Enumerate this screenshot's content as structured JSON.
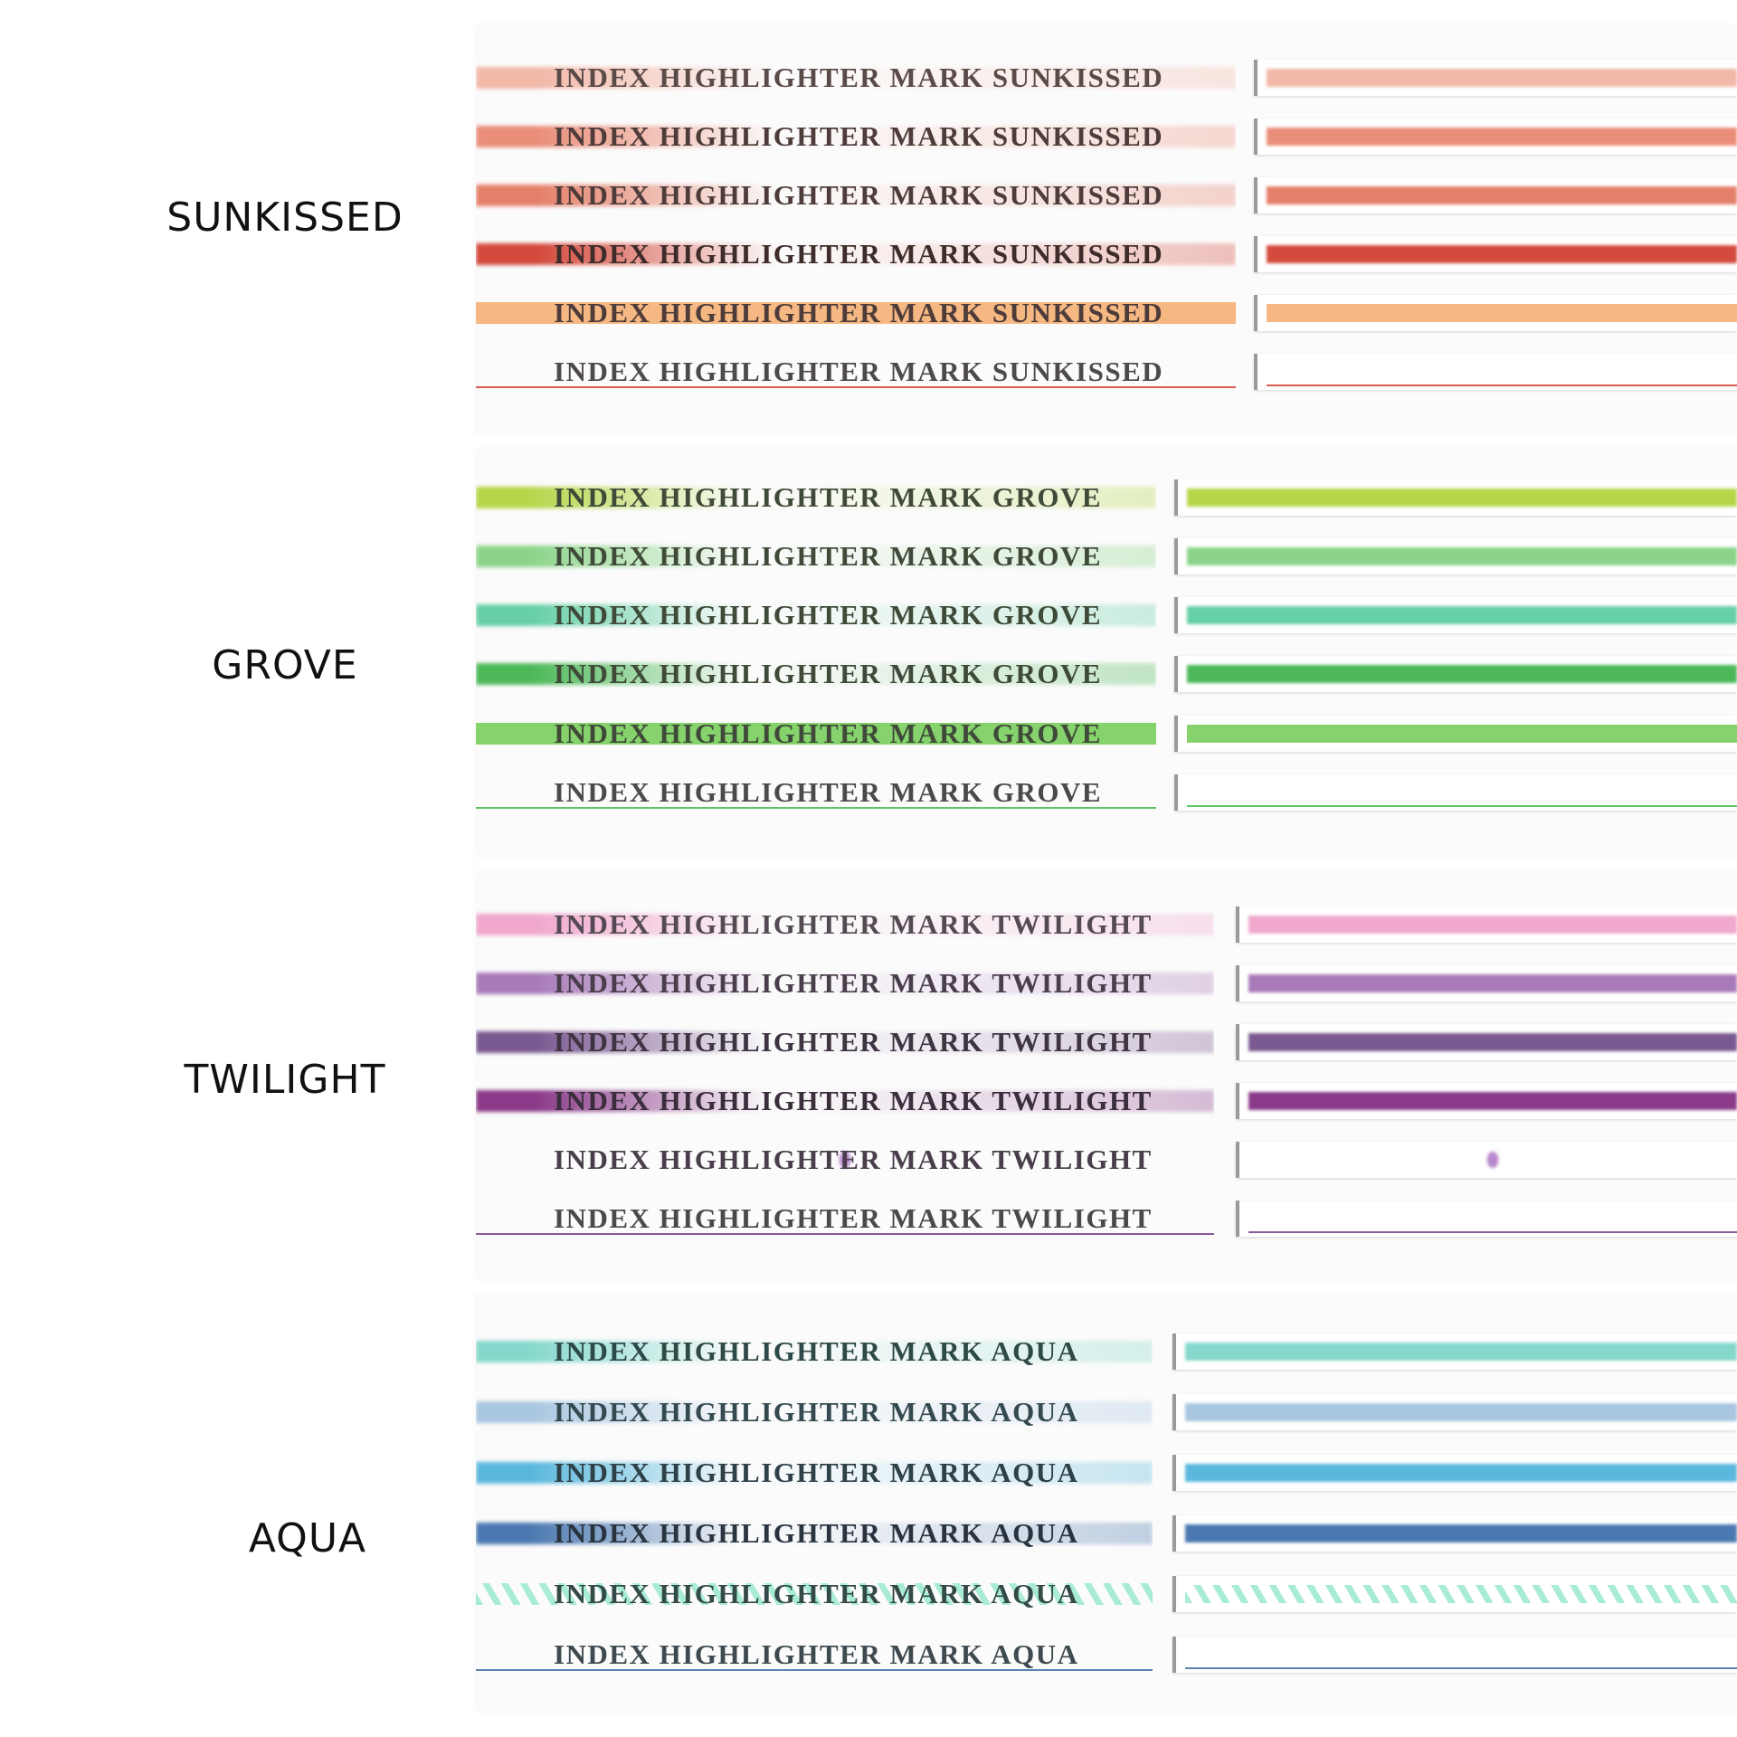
{
  "groups": [
    {
      "name": "SUNKISSED",
      "strips": [
        {
          "text": "INDEX HIGHLIGHTER MARK SUNKISSED",
          "color": "#f2b8a8",
          "style": "solid",
          "text_color": "#5a4a48"
        },
        {
          "text": "INDEX HIGHLIGHTER MARK SUNKISSED",
          "color": "#ea8e7a",
          "style": "solid",
          "text_color": "#4e3c3a"
        },
        {
          "text": "INDEX HIGHLIGHTER MARK SUNKISSED",
          "color": "#e4806a",
          "style": "solid",
          "text_color": "#4e3c3a"
        },
        {
          "text": "INDEX HIGHLIGHTER MARK SUNKISSED",
          "color": "#d44a3c",
          "style": "solid",
          "text_color": "#3e2c2a"
        },
        {
          "text": "INDEX HIGHLIGHTER MARK SUNKISSED",
          "color": "#f6b882",
          "style": "dots",
          "text_color": "#4e3c3a"
        },
        {
          "text": "INDEX HIGHLIGHTER MARK SUNKISSED",
          "color": "#d95a50",
          "style": "line",
          "text_color": "#4e4a4c"
        }
      ]
    },
    {
      "name": "GROVE",
      "strips": [
        {
          "text": "INDEX HIGHLIGHTER MARK GROVE",
          "color": "#b6d64a",
          "style": "solid",
          "text_color": "#3f4a38"
        },
        {
          "text": "INDEX HIGHLIGHTER MARK GROVE",
          "color": "#8cd48a",
          "style": "solid",
          "text_color": "#3f4a38"
        },
        {
          "text": "INDEX HIGHLIGHTER MARK GROVE",
          "color": "#66cfa6",
          "style": "solid",
          "text_color": "#3f4a38"
        },
        {
          "text": "INDEX HIGHLIGHTER MARK GROVE",
          "color": "#4cb858",
          "style": "solid",
          "text_color": "#3f4a38"
        },
        {
          "text": "INDEX HIGHLIGHTER MARK GROVE",
          "color": "#86d36e",
          "style": "dots",
          "text_color": "#3f4a38"
        },
        {
          "text": "INDEX HIGHLIGHTER MARK GROVE",
          "color": "#5ec46a",
          "style": "line",
          "text_color": "#4a4a4a"
        }
      ]
    },
    {
      "name": "TWILIGHT",
      "strips": [
        {
          "text": "INDEX HIGHLIGHTER MARK TWILIGHT",
          "color": "#f0a8cc",
          "style": "solid",
          "text_color": "#544a54"
        },
        {
          "text": "INDEX HIGHLIGHTER MARK TWILIGHT",
          "color": "#a87ab8",
          "style": "solid",
          "text_color": "#4a3e4c"
        },
        {
          "text": "INDEX HIGHLIGHTER MARK TWILIGHT",
          "color": "#7a5890",
          "style": "solid",
          "text_color": "#3e3442"
        },
        {
          "text": "INDEX HIGHLIGHTER MARK TWILIGHT",
          "color": "#8a3a88",
          "style": "solid",
          "text_color": "#3a2e3c"
        },
        {
          "text": "INDEX HIGHLIGHTER MARK TWILIGHT",
          "color": "#b788cc",
          "style": "waves",
          "text_color": "#4a3e4c"
        },
        {
          "text": "INDEX HIGHLIGHTER MARK TWILIGHT",
          "color": "#8a5a9a",
          "style": "line",
          "text_color": "#4a4a4c"
        }
      ]
    },
    {
      "name": "AQUA",
      "strips": [
        {
          "text": "INDEX HIGHLIGHTER MARK AQUA",
          "color": "#86d8cc",
          "style": "solid",
          "text_color": "#2e4a48"
        },
        {
          "text": "INDEX HIGHLIGHTER MARK AQUA",
          "color": "#a8c6e0",
          "style": "solid",
          "text_color": "#344a50"
        },
        {
          "text": "INDEX HIGHLIGHTER MARK AQUA",
          "color": "#5ab8dc",
          "style": "solid",
          "text_color": "#2e4048"
        },
        {
          "text": "INDEX HIGHLIGHTER MARK AQUA",
          "color": "#4a78b0",
          "style": "solid",
          "text_color": "#2a3440"
        },
        {
          "text": "INDEX HIGHLIGHTER MARK AQUA",
          "color": "#a8ecd6",
          "style": "stripes",
          "text_color": "#344a48"
        },
        {
          "text": "INDEX HIGHLIGHTER MARK AQUA",
          "color": "#5a84b0",
          "style": "line",
          "text_color": "#3e4a50"
        }
      ]
    }
  ]
}
